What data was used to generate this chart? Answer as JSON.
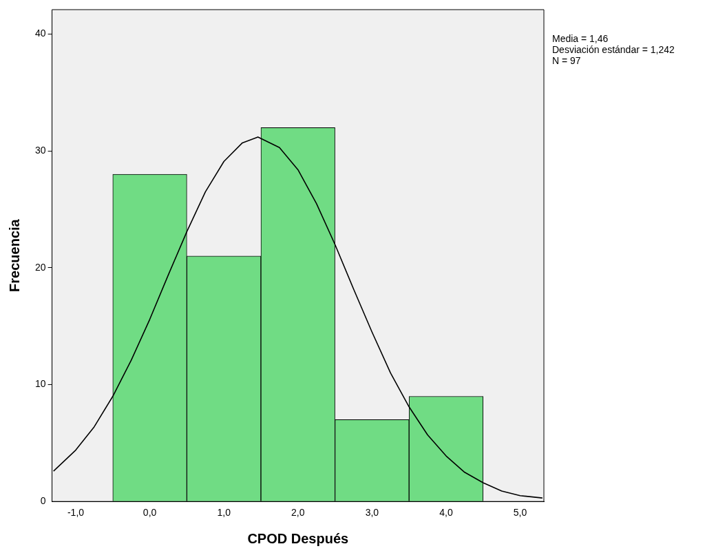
{
  "chart_data": {
    "type": "histogram",
    "xlabel": "CPOD Después",
    "ylabel": "Frecuencia",
    "annotations": [
      "Media = 1,46",
      "Desviación estándar = 1,242",
      "N = 97"
    ],
    "xlim": [
      -1.32,
      5.32
    ],
    "ylim": [
      0,
      42.1
    ],
    "xticks": [
      {
        "value": -1,
        "label": "-1,0"
      },
      {
        "value": 0,
        "label": "0,0"
      },
      {
        "value": 1,
        "label": "1,0"
      },
      {
        "value": 2,
        "label": "2,0"
      },
      {
        "value": 3,
        "label": "3,0"
      },
      {
        "value": 4,
        "label": "4,0"
      },
      {
        "value": 5,
        "label": "5,0"
      }
    ],
    "yticks": [
      0,
      10,
      20,
      30,
      40
    ],
    "grid": false,
    "legend": false,
    "series": [
      {
        "type": "histogram",
        "color": "#70dc84",
        "bins": [
          -0.5,
          0.5,
          1.5,
          2.5,
          3.5,
          4.5
        ],
        "values": [
          28,
          21,
          32,
          7,
          9
        ]
      },
      {
        "type": "line",
        "color": "#000000",
        "marker": "none",
        "x": [
          -1.3,
          -1,
          -0.75,
          -0.5,
          -0.25,
          0,
          0.25,
          0.5,
          0.75,
          1,
          1.25,
          1.46,
          1.75,
          2,
          2.25,
          2.5,
          2.75,
          3,
          3.25,
          3.5,
          3.75,
          4,
          4.25,
          4.5,
          4.75,
          5,
          5.3
        ],
        "values": [
          2.6,
          4.4,
          6.4,
          9.0,
          12.1,
          15.6,
          19.4,
          23.1,
          26.5,
          29.1,
          30.7,
          31.2,
          30.3,
          28.4,
          25.5,
          22.0,
          18.2,
          14.5,
          11.0,
          8.1,
          5.7,
          3.9,
          2.5,
          1.6,
          0.9,
          0.5,
          0.3
        ]
      }
    ]
  }
}
